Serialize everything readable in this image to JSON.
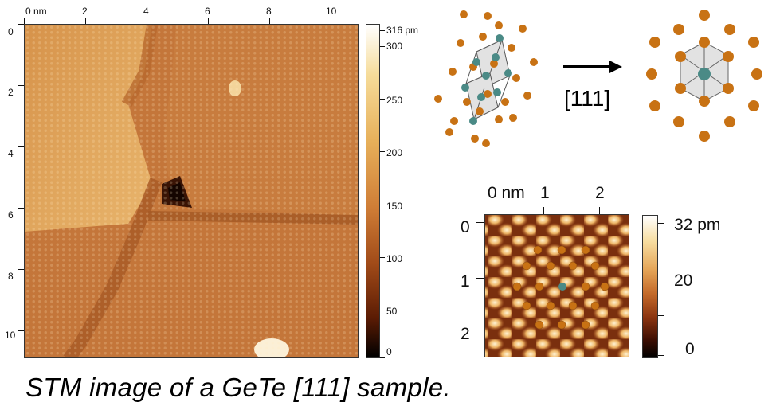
{
  "large_scan": {
    "x_axis": {
      "unit_label": "0 nm",
      "ticks": [
        "0 nm",
        "2",
        "4",
        "6",
        "8",
        "10"
      ]
    },
    "y_axis": {
      "ticks": [
        "0",
        "2",
        "4",
        "6",
        "8",
        "10"
      ]
    }
  },
  "large_colorbar": {
    "max_label": "316 pm",
    "ticks": [
      "300",
      "250",
      "200",
      "150",
      "100",
      "50",
      "0"
    ]
  },
  "crystal_diagram": {
    "arrow_label": "[111]",
    "ge_color": "#4a8a86",
    "te_color": "#c87214"
  },
  "inset_scan": {
    "x_axis": {
      "ticks": [
        "0 nm",
        "1",
        "2"
      ]
    },
    "y_axis": {
      "ticks": [
        "0",
        "1",
        "2"
      ]
    }
  },
  "inset_colorbar": {
    "ticks": [
      "32 pm",
      "20",
      "0"
    ]
  },
  "caption": "STM image  of a GeTe [111]  sample."
}
